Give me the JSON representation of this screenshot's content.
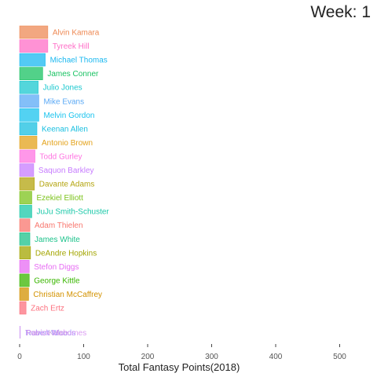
{
  "chart_data": {
    "type": "bar",
    "orientation": "horizontal",
    "title": "Week: 1",
    "xlabel": "Total Fantasy Points(2018)",
    "ylabel": "",
    "xlim": [
      0,
      520
    ],
    "x_ticks": [
      0,
      100,
      200,
      300,
      400,
      500
    ],
    "grid": false,
    "legend": "none",
    "series": [
      {
        "name": "Alvin Kamara",
        "value": 44,
        "color": "#ee8a55"
      },
      {
        "name": "Tyreek Hill",
        "value": 44,
        "color": "#ff6ec7"
      },
      {
        "name": "Michael Thomas",
        "value": 40,
        "color": "#1ab8f0"
      },
      {
        "name": "James Conner",
        "value": 36,
        "color": "#18c262"
      },
      {
        "name": "Julio Jones",
        "value": 29,
        "color": "#1bc8cf"
      },
      {
        "name": "Mike Evans",
        "value": 30,
        "color": "#5aa9f5"
      },
      {
        "name": "Melvin Gordon",
        "value": 30,
        "color": "#19c3ee"
      },
      {
        "name": "Keenan Allen",
        "value": 27,
        "color": "#18bfe0"
      },
      {
        "name": "Antonio Brown",
        "value": 27,
        "color": "#e3a21a"
      },
      {
        "name": "Todd Gurley",
        "value": 24,
        "color": "#ff74e1"
      },
      {
        "name": "Saquon Barkley",
        "value": 22,
        "color": "#c77cff"
      },
      {
        "name": "Davante Adams",
        "value": 23,
        "color": "#b3a40e"
      },
      {
        "name": "Ezekiel Elliott",
        "value": 19,
        "color": "#7cc31b"
      },
      {
        "name": "JuJu Smith-Schuster",
        "value": 19,
        "color": "#1ac8a8"
      },
      {
        "name": "Adam Thielen",
        "value": 16,
        "color": "#f8766d"
      },
      {
        "name": "James White",
        "value": 16,
        "color": "#1bc28a"
      },
      {
        "name": "DeAndre Hopkins",
        "value": 17,
        "color": "#a3a500"
      },
      {
        "name": "Stefon Diggs",
        "value": 15,
        "color": "#e76bf3"
      },
      {
        "name": "George Kittle",
        "value": 15,
        "color": "#39b600"
      },
      {
        "name": "Christian McCaffrey",
        "value": 14,
        "color": "#d39200"
      },
      {
        "name": "Zach Ertz",
        "value": 10,
        "color": "#fc717f"
      },
      {
        "name": "Travis Kelce",
        "value": 1,
        "color": "#c9a0dc"
      },
      {
        "name": "Robert Woods",
        "value": 1,
        "color": "#9590ff"
      },
      {
        "name": "Patrick Mahomes",
        "value": 1,
        "color": "#d58cf0"
      }
    ]
  }
}
